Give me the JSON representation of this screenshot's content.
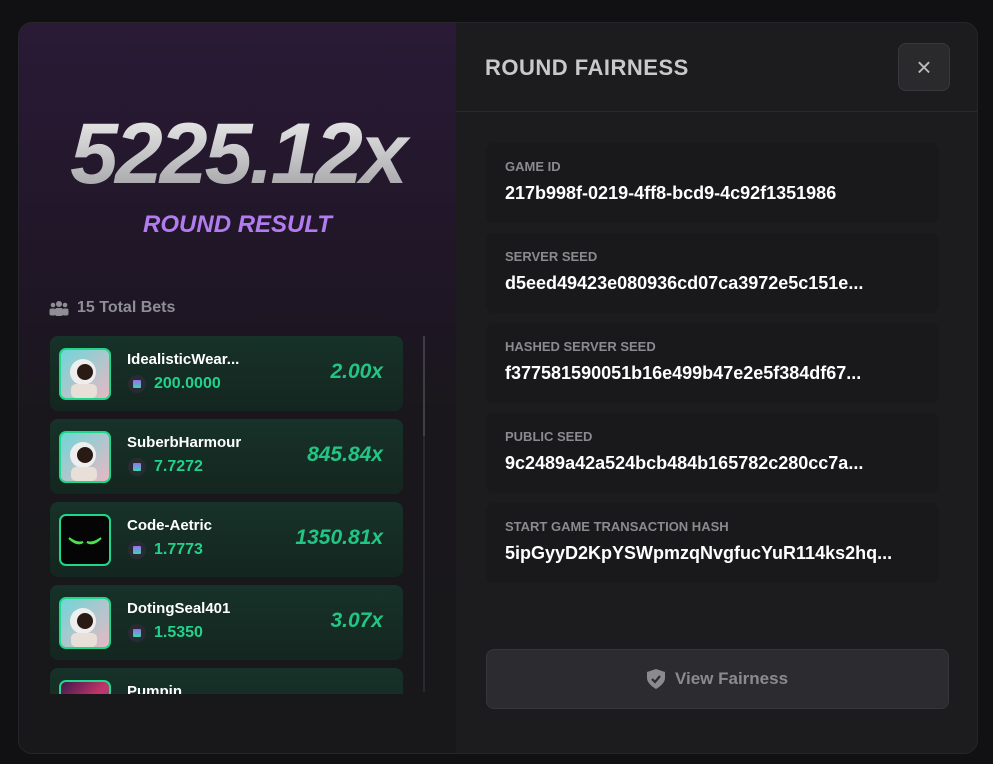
{
  "result": {
    "multiplier": "5225.12x",
    "label": "ROUND RESULT"
  },
  "bets": {
    "total_label": "15 Total Bets",
    "items": [
      {
        "name": "IdealisticWear...",
        "amount": "200.0000",
        "multiplier": "2.00x",
        "avatar": "astronaut"
      },
      {
        "name": "SuberbHarmour",
        "amount": "7.7272",
        "multiplier": "845.84x",
        "avatar": "astronaut"
      },
      {
        "name": "Code-Aetric",
        "amount": "1.7773",
        "multiplier": "1350.81x",
        "avatar": "green-eyes"
      },
      {
        "name": "DotingSeal401",
        "amount": "1.5350",
        "multiplier": "3.07x",
        "avatar": "astronaut"
      },
      {
        "name": "Pumpin",
        "amount": "",
        "multiplier": "",
        "avatar": "colorful"
      }
    ]
  },
  "fairness": {
    "title": "ROUND FAIRNESS",
    "close": "×",
    "fields": [
      {
        "label": "GAME ID",
        "value": "217b998f-0219-4ff8-bcd9-4c92f1351986"
      },
      {
        "label": "SERVER SEED",
        "value": "d5eed49423e080936cd07ca3972e5c151e..."
      },
      {
        "label": "HASHED SERVER SEED",
        "value": "f377581590051b16e499b47e2e5f384df67..."
      },
      {
        "label": "PUBLIC SEED",
        "value": "9c2489a42a524bcb484b165782c280cc7a..."
      },
      {
        "label": "START GAME TRANSACTION HASH",
        "value": "5ipGyyD2KpYSWpmzqNvgfucYuR114ks2hq..."
      }
    ],
    "button": "View Fairness"
  },
  "colors": {
    "accent_green": "#22d28c",
    "purple": "#b27cf0"
  }
}
